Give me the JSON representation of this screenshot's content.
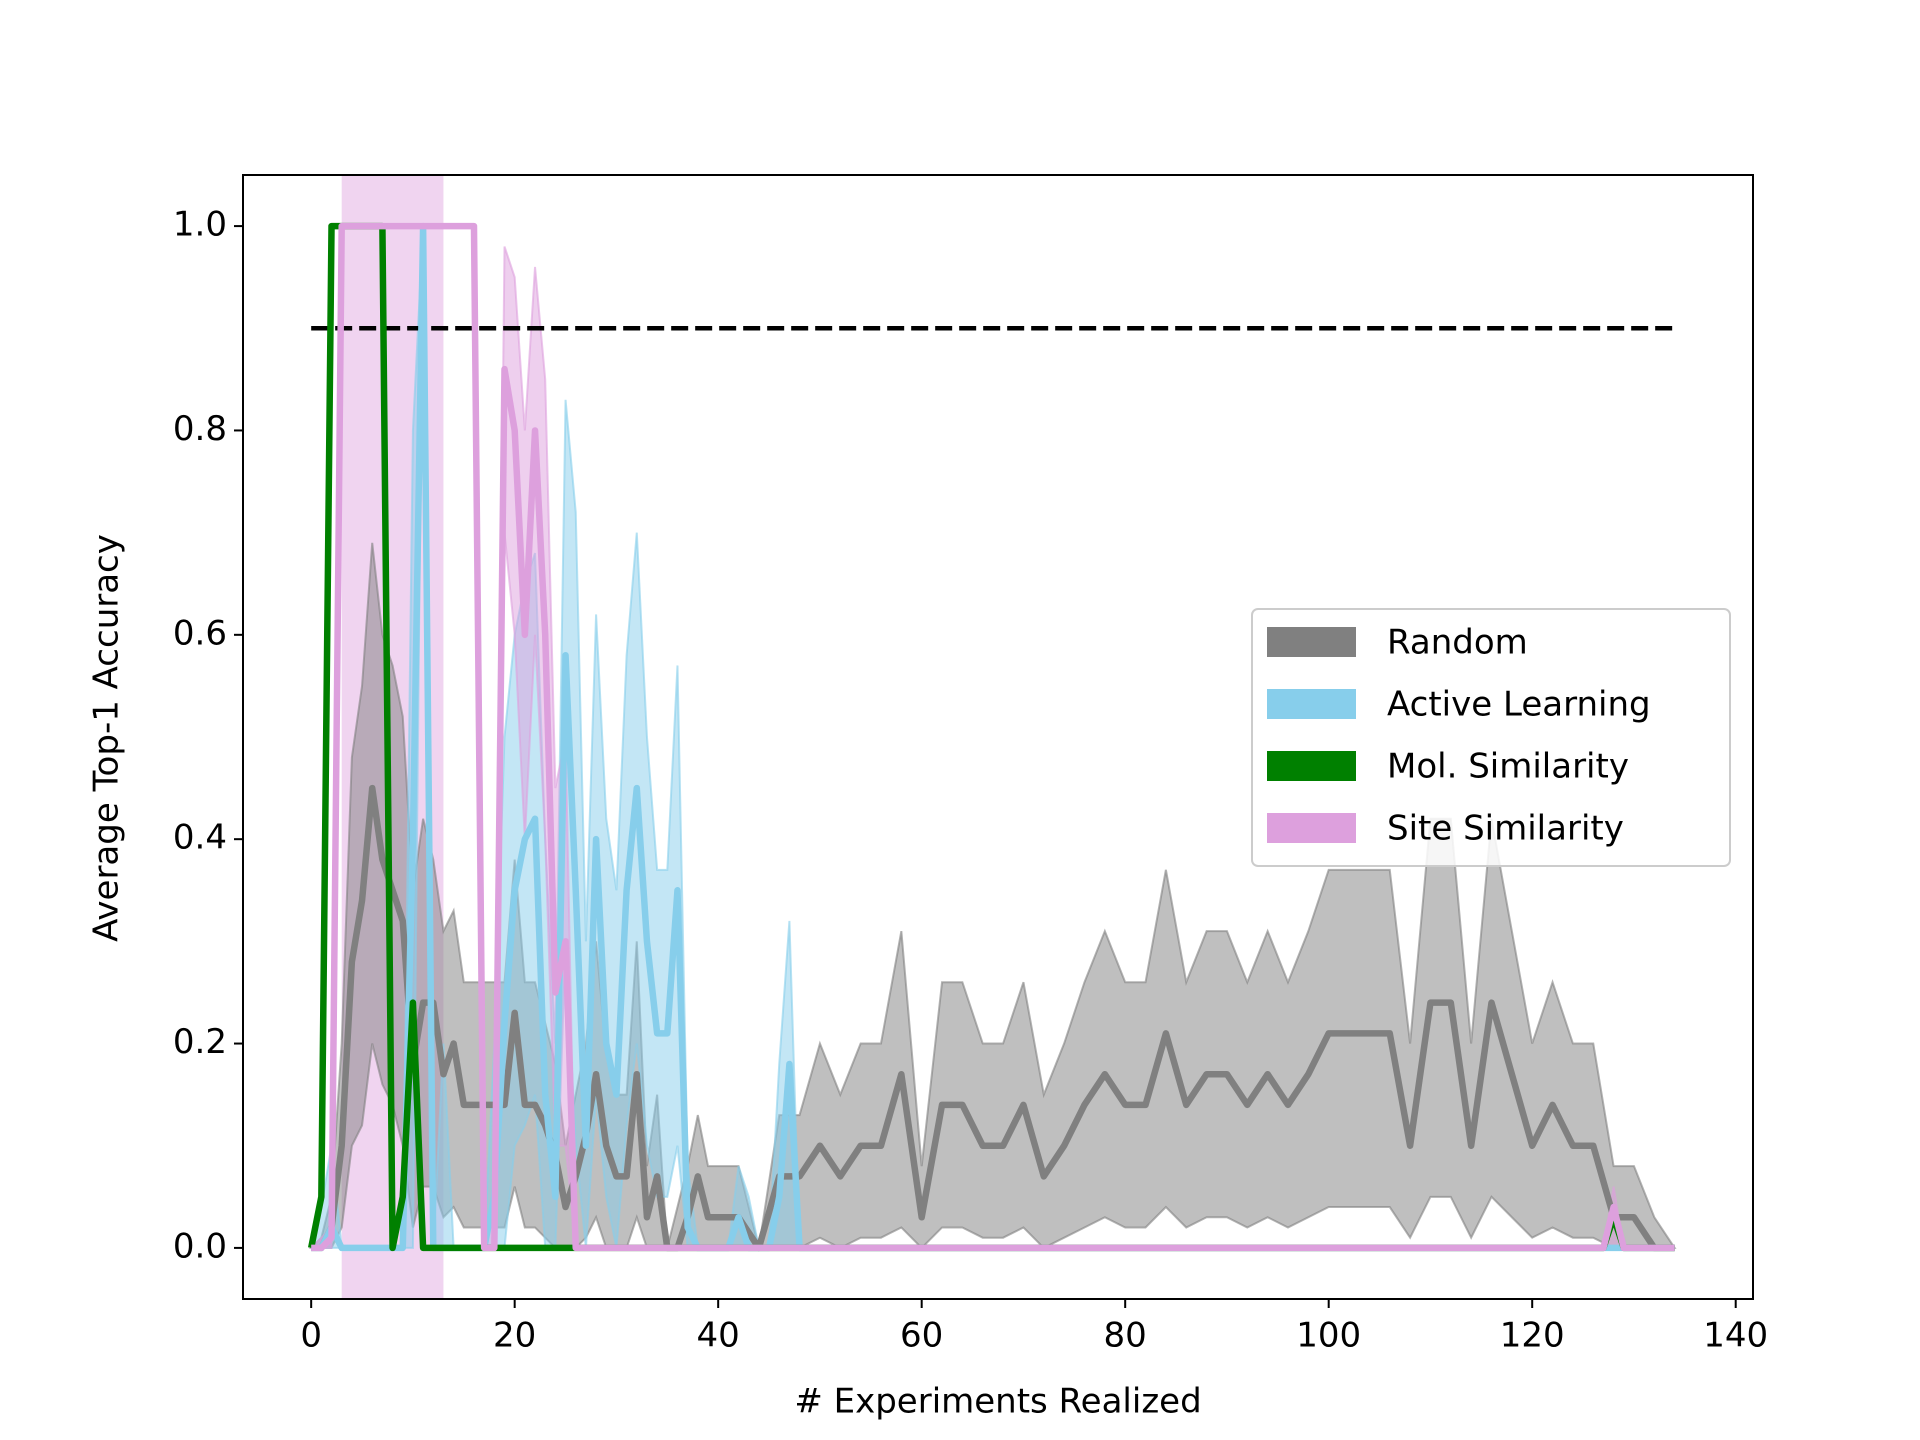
{
  "chart_data": {
    "type": "line",
    "xlabel": "# Experiments Realized",
    "ylabel": "Average Top-1 Accuracy",
    "xlim": [
      -6.7,
      141.7
    ],
    "ylim": [
      -0.05,
      1.05
    ],
    "xticks": [
      0,
      20,
      40,
      60,
      80,
      100,
      120,
      140
    ],
    "yticks": [
      {
        "value": 0,
        "label": "0.0"
      },
      0.2,
      0.4,
      0.6,
      0.8,
      {
        "value": 1,
        "label": "1.0"
      }
    ],
    "grid": false,
    "legend": "center right",
    "shaded_span": {
      "x": [
        3,
        13
      ],
      "color": "#DDA0DD"
    },
    "reference_line": {
      "y": 0.9,
      "x": [
        0,
        134
      ],
      "color": "#000000"
    },
    "series": [
      {
        "name": "Random",
        "color": "#808080",
        "x": [
          0,
          1,
          2,
          3,
          4,
          5,
          6,
          7,
          8,
          9,
          10,
          11,
          12,
          13,
          14,
          15,
          16,
          17,
          18,
          19,
          20,
          21,
          22,
          23,
          24,
          25,
          26,
          27,
          28,
          29,
          30,
          31,
          32,
          33,
          34,
          35,
          36,
          37,
          38,
          39,
          40,
          42,
          44,
          46,
          48,
          50,
          52,
          54,
          56,
          58,
          60,
          62,
          64,
          66,
          68,
          70,
          72,
          74,
          76,
          78,
          80,
          82,
          84,
          86,
          88,
          90,
          92,
          94,
          96,
          98,
          100,
          102,
          104,
          106,
          108,
          110,
          112,
          114,
          116,
          118,
          120,
          122,
          124,
          126,
          128,
          130,
          132,
          134
        ],
        "values": [
          0,
          0,
          0.02,
          0.1,
          0.28,
          0.34,
          0.45,
          0.38,
          0.35,
          0.32,
          0.18,
          0.24,
          0.24,
          0.17,
          0.2,
          0.14,
          0.14,
          0.14,
          0.14,
          0.14,
          0.23,
          0.14,
          0.14,
          0.12,
          0.09,
          0.04,
          0.07,
          0.11,
          0.17,
          0.1,
          0.07,
          0.07,
          0.17,
          0.03,
          0.07,
          0,
          0,
          0.03,
          0.07,
          0.03,
          0.03,
          0.03,
          0,
          0.07,
          0.07,
          0.1,
          0.07,
          0.1,
          0.1,
          0.17,
          0.03,
          0.14,
          0.14,
          0.1,
          0.1,
          0.14,
          0.07,
          0.1,
          0.14,
          0.17,
          0.14,
          0.14,
          0.21,
          0.14,
          0.17,
          0.17,
          0.14,
          0.17,
          0.14,
          0.17,
          0.21,
          0.21,
          0.21,
          0.21,
          0.1,
          0.24,
          0.24,
          0.1,
          0.24,
          0.17,
          0.1,
          0.14,
          0.1,
          0.1,
          0.03,
          0.03,
          0,
          0
        ],
        "lower": [
          0,
          0,
          0,
          0.02,
          0.1,
          0.12,
          0.2,
          0.16,
          0.14,
          0.1,
          0.02,
          0.06,
          0.06,
          0.03,
          0.04,
          0.02,
          0.02,
          0.02,
          0.02,
          0.02,
          0.06,
          0.02,
          0.02,
          0.01,
          0,
          0,
          0,
          0.01,
          0.03,
          0,
          0,
          0,
          0.03,
          0,
          0,
          0,
          0,
          0,
          0,
          0,
          0,
          0,
          0,
          0,
          0,
          0.01,
          0,
          0.01,
          0.01,
          0.02,
          0,
          0.02,
          0.02,
          0.01,
          0.01,
          0.02,
          0,
          0.01,
          0.02,
          0.03,
          0.02,
          0.02,
          0.04,
          0.02,
          0.03,
          0.03,
          0.02,
          0.03,
          0.02,
          0.03,
          0.04,
          0.04,
          0.04,
          0.04,
          0.01,
          0.05,
          0.05,
          0.01,
          0.05,
          0.03,
          0.01,
          0.02,
          0.01,
          0.01,
          0,
          0,
          0,
          0
        ],
        "upper": [
          0,
          0.01,
          0.05,
          0.2,
          0.48,
          0.55,
          0.69,
          0.6,
          0.57,
          0.52,
          0.35,
          0.42,
          0.38,
          0.31,
          0.33,
          0.26,
          0.26,
          0.26,
          0.26,
          0.26,
          0.38,
          0.26,
          0.26,
          0.22,
          0.18,
          0.1,
          0.15,
          0.2,
          0.3,
          0.19,
          0.15,
          0.15,
          0.3,
          0.08,
          0.15,
          0,
          0.04,
          0.08,
          0.13,
          0.08,
          0.08,
          0.08,
          0,
          0.13,
          0.13,
          0.2,
          0.15,
          0.2,
          0.2,
          0.31,
          0.08,
          0.26,
          0.26,
          0.2,
          0.2,
          0.26,
          0.15,
          0.2,
          0.26,
          0.31,
          0.26,
          0.26,
          0.37,
          0.26,
          0.31,
          0.31,
          0.26,
          0.31,
          0.26,
          0.31,
          0.37,
          0.37,
          0.37,
          0.37,
          0.2,
          0.42,
          0.42,
          0.2,
          0.42,
          0.31,
          0.2,
          0.26,
          0.2,
          0.2,
          0.08,
          0.08,
          0.03,
          0
        ]
      },
      {
        "name": "Active Learning",
        "color": "#87CEEB",
        "x": [
          0,
          1,
          2,
          3,
          4,
          5,
          6,
          7,
          8,
          9,
          10,
          11,
          12,
          13,
          14,
          15,
          16,
          17,
          18,
          19,
          20,
          21,
          22,
          23,
          24,
          25,
          26,
          27,
          28,
          29,
          30,
          31,
          32,
          33,
          34,
          35,
          36,
          37,
          38,
          39,
          40,
          41,
          42,
          43,
          44,
          45,
          46,
          47,
          48,
          134
        ],
        "values": [
          0,
          0,
          0.02,
          0,
          0,
          0,
          0,
          0,
          0,
          0,
          0.4,
          1,
          0,
          0,
          0,
          0,
          0,
          0,
          0.05,
          0.22,
          0.35,
          0.4,
          0.42,
          0.15,
          0.05,
          0.58,
          0.35,
          0.1,
          0.4,
          0.2,
          0.15,
          0.35,
          0.45,
          0.3,
          0.21,
          0.21,
          0.35,
          0.02,
          0,
          0,
          0,
          0,
          0.03,
          0,
          0,
          0,
          0.05,
          0.18,
          0,
          0
        ],
        "lower": [
          0,
          0,
          0,
          0,
          0,
          0,
          0,
          0,
          0,
          0,
          0,
          1,
          0,
          0,
          0,
          0,
          0,
          0,
          0,
          0,
          0.1,
          0.12,
          0.15,
          0,
          0,
          0.3,
          0.1,
          0,
          0.15,
          0.05,
          0,
          0.12,
          0.2,
          0.1,
          0.05,
          0.05,
          0.1,
          0,
          0,
          0,
          0,
          0,
          0,
          0,
          0,
          0,
          0,
          0,
          0,
          0
        ],
        "upper": [
          0,
          0.04,
          0.1,
          0,
          0,
          0,
          0,
          0,
          0,
          0,
          0.8,
          1,
          0,
          0.2,
          0,
          0,
          0,
          0,
          0.2,
          0.5,
          0.6,
          0.65,
          0.68,
          0.4,
          0.2,
          0.83,
          0.72,
          0.3,
          0.62,
          0.42,
          0.35,
          0.58,
          0.7,
          0.5,
          0.37,
          0.37,
          0.57,
          0.08,
          0,
          0,
          0,
          0,
          0.08,
          0.05,
          0,
          0,
          0.18,
          0.32,
          0,
          0
        ]
      },
      {
        "name": "Mol. Similarity",
        "color": "#008000",
        "x": [
          0,
          1,
          2,
          7,
          8,
          9,
          10,
          11,
          26,
          127,
          128,
          129,
          134
        ],
        "values": [
          0,
          0.05,
          1,
          1,
          0,
          0.05,
          0.24,
          0,
          0,
          0,
          0.03,
          0,
          0
        ]
      },
      {
        "name": "Site Similarity",
        "color": "#DDA0DD",
        "x": [
          0,
          1,
          2,
          3,
          16,
          17,
          18,
          19,
          20,
          21,
          22,
          23,
          24,
          25,
          26,
          127,
          128,
          129,
          134
        ],
        "values": [
          0,
          0,
          0.01,
          1,
          1,
          0,
          0,
          0.86,
          0.8,
          0.6,
          0.8,
          0.6,
          0.25,
          0.3,
          0,
          0,
          0.04,
          0,
          0
        ],
        "lower": [
          0,
          0,
          0,
          1,
          1,
          0,
          0,
          0.7,
          0.6,
          0.4,
          0.6,
          0.4,
          0.1,
          0.1,
          0,
          0,
          0,
          0,
          0
        ],
        "upper": [
          0,
          0.01,
          0.02,
          1,
          1,
          0,
          0.05,
          0.98,
          0.95,
          0.8,
          0.96,
          0.85,
          0.45,
          0.5,
          0,
          0,
          0.06,
          0,
          0
        ]
      }
    ]
  }
}
